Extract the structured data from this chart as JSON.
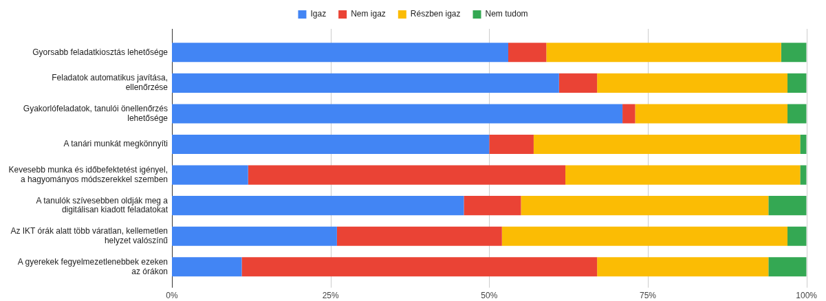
{
  "chart_data": {
    "type": "bar",
    "orientation": "horizontal",
    "stacked": true,
    "categories": [
      "Gyorsabb feladatkiosztás lehetősége",
      "Feladatok automatikus javítása, ellenőrzése",
      "Gyakorlófeladatok, tanulói önellenőrzés lehetősége",
      "A tanári munkát megkönnyíti",
      "Kevesebb munka és időbefektetést igényel, a hagyományos módszerekkel szemben",
      "A tanulók szívesebben oldják meg a digitálisan kiadott feladatokat",
      "Az IKT órák alatt több váratlan, kellemetlen helyzet valószínű",
      "A gyerekek fegyelmezetlenebbek ezeken az órákon"
    ],
    "series": [
      {
        "name": "Igaz",
        "color": "#4285f4",
        "values": [
          53,
          61,
          71,
          50,
          12,
          46,
          26,
          11
        ]
      },
      {
        "name": "Nem igaz",
        "color": "#ea4335",
        "values": [
          6,
          6,
          2,
          7,
          50,
          9,
          26,
          56
        ]
      },
      {
        "name": "Részben igaz",
        "color": "#fbbc04",
        "values": [
          37,
          30,
          24,
          42,
          37,
          39,
          45,
          27
        ]
      },
      {
        "name": "Nem tudom",
        "color": "#34a853",
        "values": [
          4,
          3,
          3,
          1,
          1,
          6,
          3,
          6
        ]
      }
    ],
    "xlim": [
      0,
      100
    ],
    "xticks": [
      {
        "value": 0,
        "label": "0%"
      },
      {
        "value": 25,
        "label": "25%"
      },
      {
        "value": 50,
        "label": "50%"
      },
      {
        "value": 75,
        "label": "75%"
      },
      {
        "value": 100,
        "label": "100%"
      }
    ],
    "grid": "x",
    "legend": "top"
  }
}
